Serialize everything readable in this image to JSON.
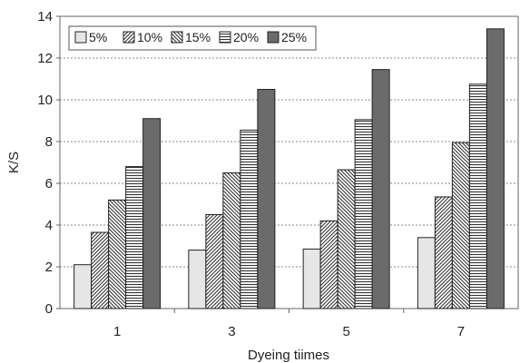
{
  "chart_data": {
    "type": "bar",
    "xlabel": "Dyeing tiimes",
    "ylabel": "K/S",
    "ylim": [
      0,
      14
    ],
    "yticks": [
      0,
      2,
      4,
      6,
      8,
      10,
      12,
      14
    ],
    "grid": "horizontal dashed",
    "legend_position": "top-left",
    "categories": [
      "1",
      "3",
      "5",
      "7"
    ],
    "series": [
      {
        "name": "5%",
        "values": [
          2.1,
          2.8,
          2.85,
          3.4
        ],
        "pattern": "solid-light",
        "color": "#e6e6e6"
      },
      {
        "name": "10%",
        "values": [
          3.65,
          4.5,
          4.2,
          5.35
        ],
        "pattern": "diagonal-up",
        "color": "#333333"
      },
      {
        "name": "15%",
        "values": [
          5.2,
          6.5,
          6.65,
          7.95
        ],
        "pattern": "diagonal-down",
        "color": "#333333"
      },
      {
        "name": "20%",
        "values": [
          6.8,
          8.55,
          9.05,
          10.75
        ],
        "pattern": "horizontal",
        "color": "#333333"
      },
      {
        "name": "25%",
        "values": [
          9.1,
          10.5,
          11.45,
          13.4
        ],
        "pattern": "solid-dark",
        "color": "#6b6b6b"
      }
    ]
  }
}
